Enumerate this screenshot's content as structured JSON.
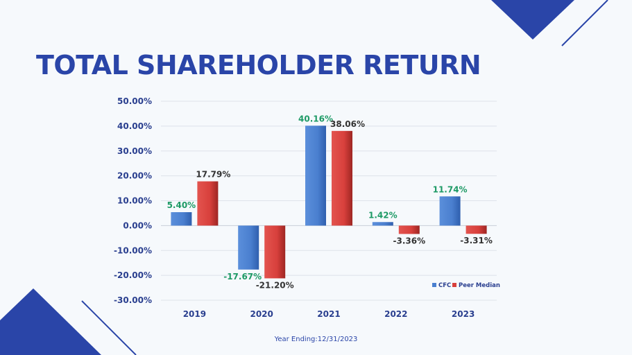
{
  "title": "TOTAL SHAREHOLDER RETURN",
  "footer": "Year Ending:12/31/2023",
  "colors": {
    "accent": "#2a45a8",
    "cfc": "#4a7fcf",
    "peer": "#d8403c",
    "cfc_label": "#1e9a66",
    "peer_label": "#333333"
  },
  "chart_data": {
    "type": "bar",
    "categories": [
      "2019",
      "2020",
      "2021",
      "2022",
      "2023"
    ],
    "series": [
      {
        "name": "CFC",
        "values": [
          5.4,
          -17.67,
          40.16,
          1.42,
          11.74
        ],
        "labels": [
          "5.40%",
          "-17.67%",
          "40.16%",
          "1.42%",
          "11.74%"
        ]
      },
      {
        "name": "Peer Median",
        "values": [
          17.79,
          -21.2,
          38.06,
          -3.36,
          -3.31
        ],
        "labels": [
          "17.79%",
          "-21.20%",
          "38.06%",
          "-3.36%",
          "-3.31%"
        ]
      }
    ],
    "ylim": [
      -30,
      50
    ],
    "ytick_values": [
      50,
      40,
      30,
      20,
      10,
      0,
      -10,
      -20,
      -30
    ],
    "ytick_labels": [
      "50.00%",
      "40.00%",
      "30.00%",
      "20.00%",
      "10.00%",
      "0.00%",
      "-10.00%",
      "-20.00%",
      "-30.00%"
    ],
    "grid": true,
    "legend": "bottom-right"
  }
}
